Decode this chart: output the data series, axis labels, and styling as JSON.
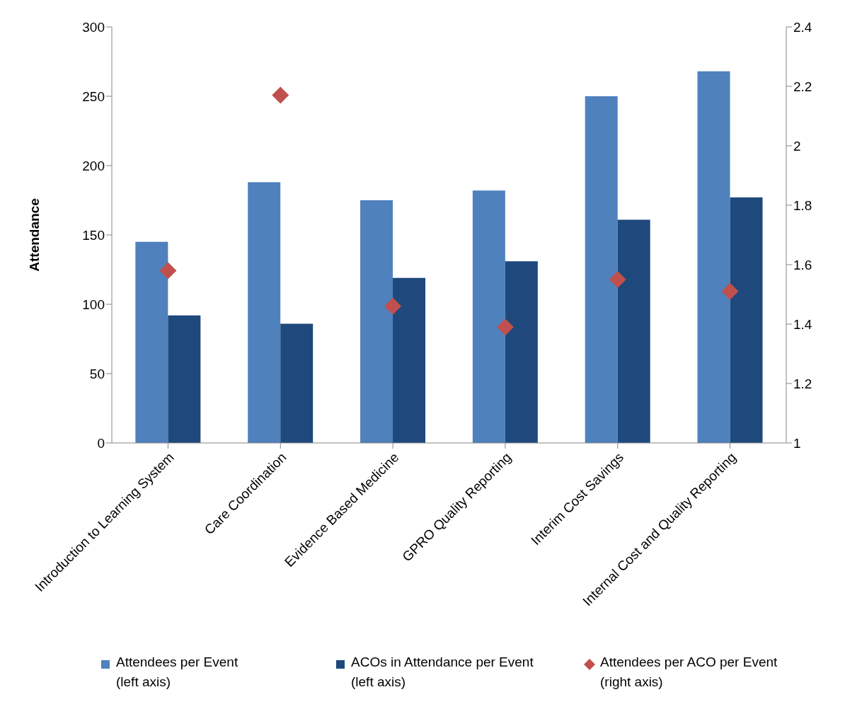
{
  "chart_data": {
    "type": "bar",
    "ylabel": "Attendance",
    "categories": [
      "Introduction to Learning System",
      "Care Coordination",
      "Evidence Based Medicine",
      "GPRO Quality Reporting",
      "Interim Cost Savings",
      "Internal Cost and Quality Reporting"
    ],
    "series": [
      {
        "name": "Attendees per Event (left axis)",
        "color": "#4f81bd",
        "values": [
          145,
          188,
          175,
          182,
          250,
          268
        ]
      },
      {
        "name": "ACOs in Attendance per Event (left axis)",
        "color": "#1f497d",
        "values": [
          92,
          86,
          119,
          131,
          161,
          177
        ]
      },
      {
        "name": "Attendees per ACO per Event (right axis)",
        "type": "scatter",
        "axis": "y2",
        "color": "#c0504d",
        "values": [
          1.58,
          2.17,
          1.46,
          1.39,
          1.55,
          1.51
        ]
      }
    ],
    "ylim": [
      0,
      300
    ],
    "yticks": [
      0,
      50,
      100,
      150,
      200,
      250,
      300
    ],
    "y2lim": [
      1,
      2.4
    ],
    "y2ticks": [
      1,
      1.2,
      1.4,
      1.6,
      1.8,
      2,
      2.2,
      2.4
    ],
    "grid": false,
    "legend": "bottom",
    "marker": "diamond"
  }
}
